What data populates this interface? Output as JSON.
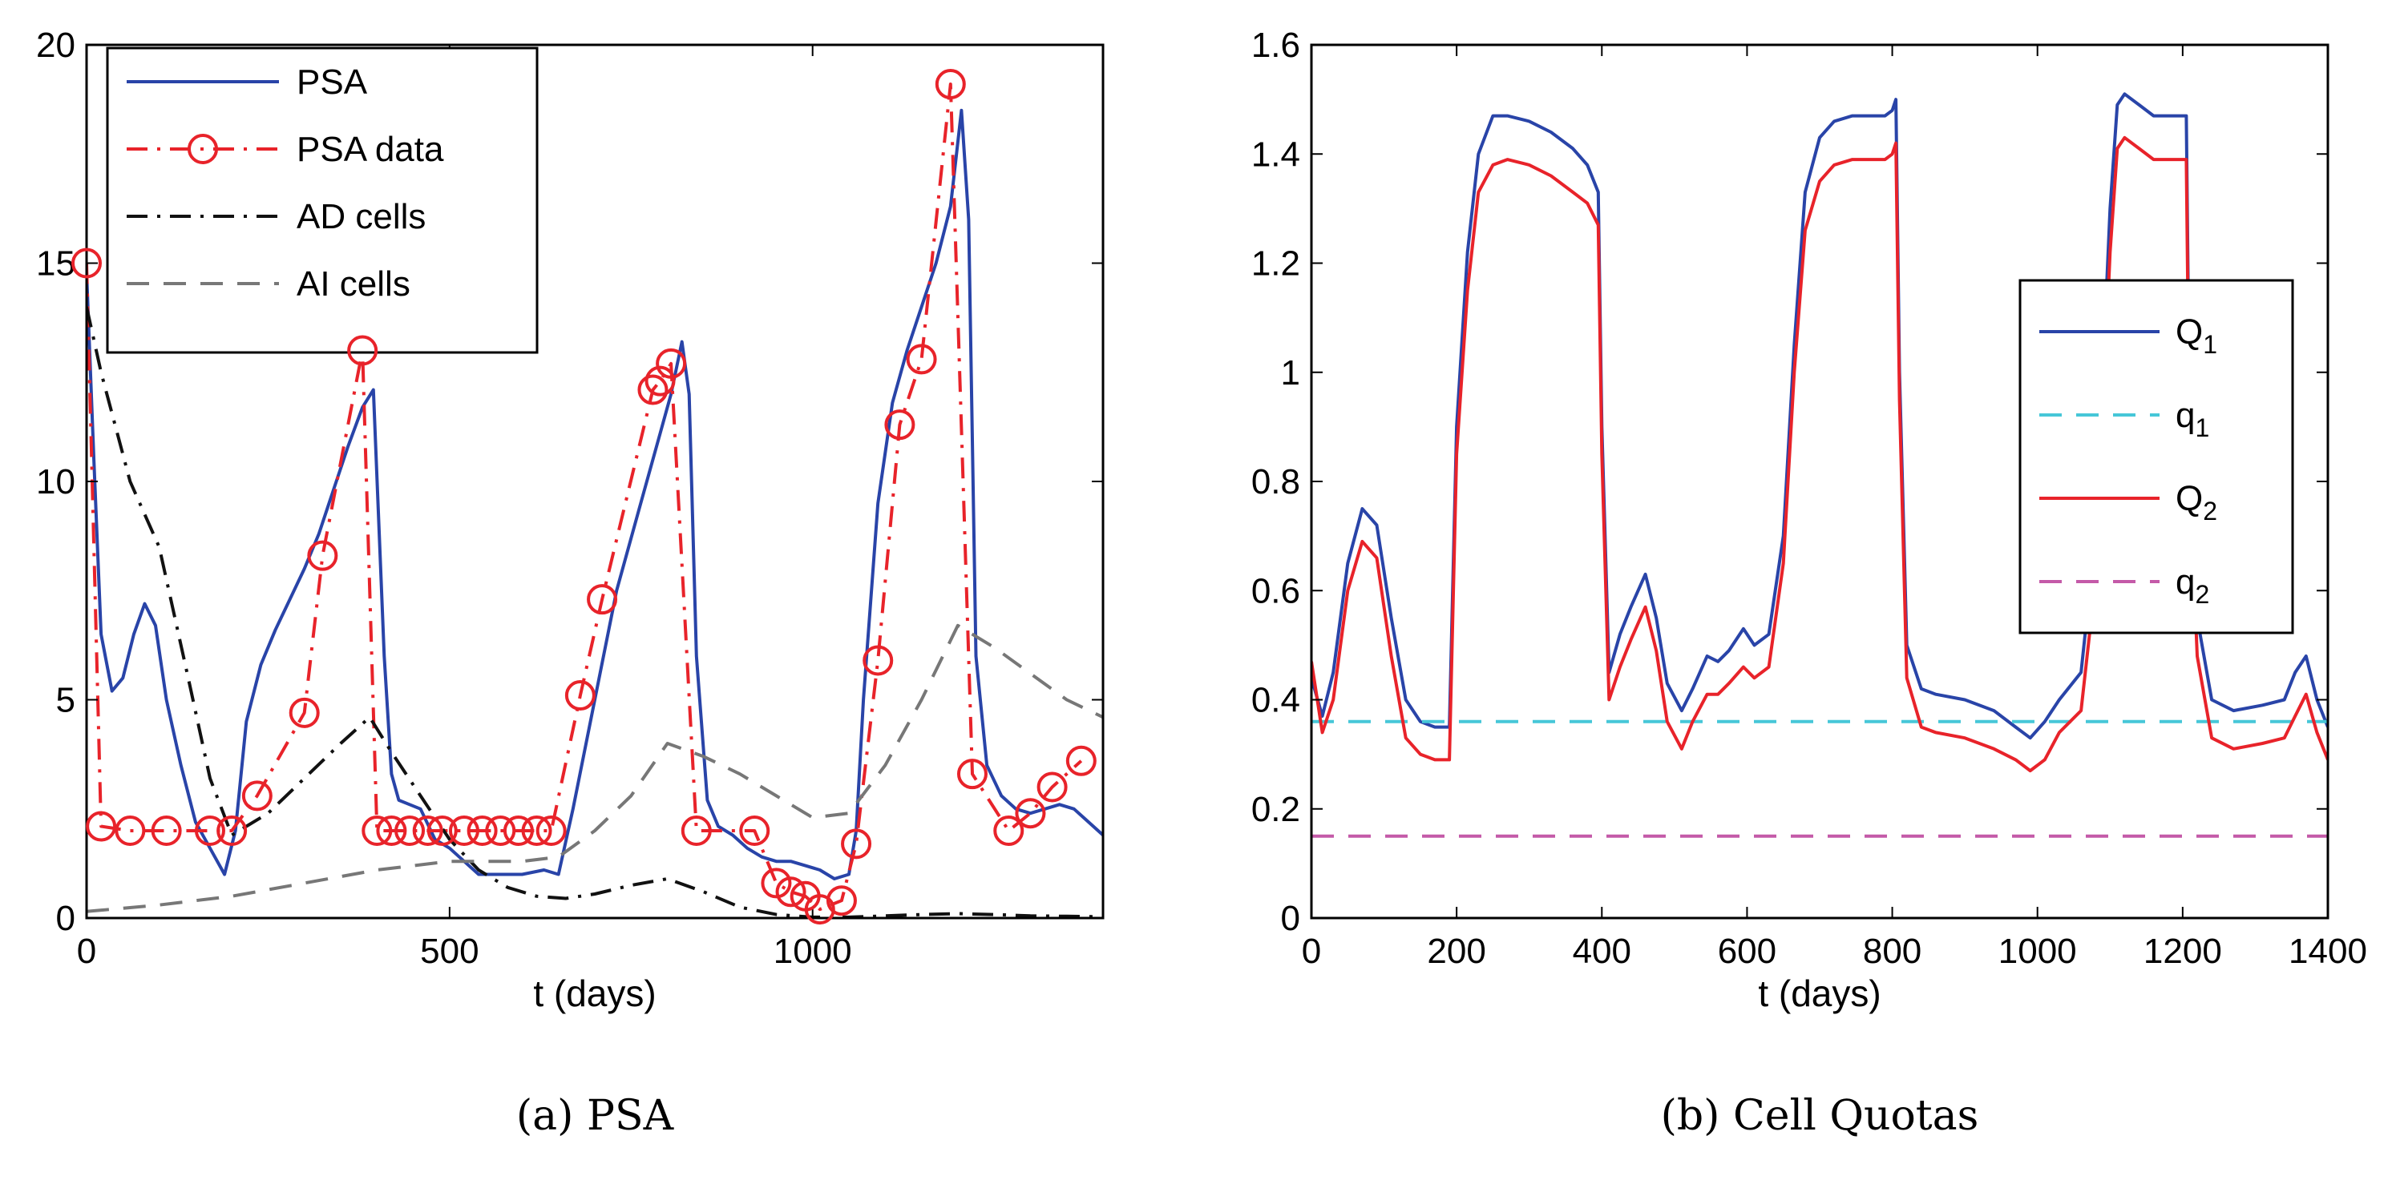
{
  "chart_data": [
    {
      "type": "line",
      "caption": "(a) PSA",
      "xlabel": "t (days)",
      "ylabel": "",
      "xlim": [
        0,
        1400
      ],
      "ylim": [
        0,
        20
      ],
      "xticks": [
        0,
        500,
        1000
      ],
      "yticks": [
        0,
        5,
        10,
        15,
        20
      ],
      "legend_position": "top-left",
      "series": [
        {
          "name": "PSA",
          "color": "#2944a8",
          "style": "solid",
          "x": [
            0,
            10,
            20,
            35,
            50,
            65,
            80,
            95,
            110,
            130,
            150,
            170,
            190,
            205,
            220,
            240,
            260,
            280,
            300,
            320,
            340,
            360,
            380,
            395,
            410,
            420,
            430,
            445,
            460,
            480,
            500,
            520,
            540,
            570,
            600,
            630,
            650,
            670,
            700,
            730,
            760,
            790,
            805,
            820,
            830,
            840,
            855,
            870,
            890,
            910,
            930,
            950,
            970,
            990,
            1010,
            1030,
            1050,
            1060,
            1070,
            1090,
            1110,
            1130,
            1150,
            1170,
            1190,
            1205,
            1215,
            1225,
            1240,
            1260,
            1280,
            1300,
            1320,
            1340,
            1360,
            1380,
            1400
          ],
          "y": [
            14.8,
            10.5,
            6.5,
            5.2,
            5.5,
            6.5,
            7.2,
            6.7,
            5.0,
            3.5,
            2.2,
            1.6,
            1.0,
            2.0,
            4.5,
            5.8,
            6.6,
            7.3,
            8.0,
            8.8,
            9.8,
            10.8,
            11.7,
            12.1,
            6.0,
            3.3,
            2.7,
            2.6,
            2.5,
            1.8,
            1.6,
            1.3,
            1.0,
            1.0,
            1.0,
            1.1,
            1.0,
            2.5,
            5.0,
            7.5,
            9.3,
            11.1,
            12.0,
            13.2,
            12.0,
            6.0,
            2.7,
            2.1,
            1.9,
            1.6,
            1.4,
            1.3,
            1.3,
            1.2,
            1.1,
            0.9,
            1.0,
            2.0,
            5.0,
            9.5,
            11.8,
            13.0,
            14.0,
            15.0,
            16.3,
            18.5,
            16.0,
            6.0,
            3.5,
            2.8,
            2.5,
            2.4,
            2.5,
            2.6,
            2.5,
            2.2,
            1.9
          ]
        },
        {
          "name": "PSA data",
          "color": "#e8232a",
          "style": "dashdot-markers",
          "x": [
            0,
            20,
            60,
            110,
            170,
            200,
            235,
            300,
            325,
            380,
            400,
            420,
            445,
            470,
            490,
            520,
            545,
            570,
            595,
            620,
            640,
            680,
            710,
            780,
            790,
            805,
            840,
            920,
            950,
            970,
            990,
            1010,
            1040,
            1060,
            1090,
            1120,
            1150,
            1190,
            1220,
            1270,
            1300,
            1330,
            1370
          ],
          "y": [
            15.0,
            2.1,
            2.0,
            2.0,
            2.0,
            2.0,
            2.8,
            4.7,
            8.3,
            13.0,
            2.0,
            2.0,
            2.0,
            2.0,
            2.0,
            2.0,
            2.0,
            2.0,
            2.0,
            2.0,
            2.0,
            5.1,
            7.3,
            12.1,
            12.3,
            12.7,
            2.0,
            2.0,
            0.8,
            0.6,
            0.5,
            0.2,
            0.4,
            1.7,
            5.9,
            11.3,
            12.8,
            19.1,
            3.3,
            2.0,
            2.4,
            3.0,
            3.6
          ]
        },
        {
          "name": "AD cells",
          "color": "#111111",
          "style": "dashdot",
          "x": [
            0,
            20,
            60,
            100,
            140,
            170,
            200,
            250,
            300,
            350,
            390,
            420,
            460,
            500,
            540,
            580,
            620,
            660,
            700,
            750,
            800,
            850,
            900,
            950,
            1000,
            1050,
            1100,
            1150,
            1200,
            1250,
            1300,
            1350,
            1400
          ],
          "y": [
            14.0,
            12.5,
            10.0,
            8.5,
            5.5,
            3.2,
            1.9,
            2.4,
            3.2,
            4.0,
            4.6,
            3.8,
            2.8,
            1.8,
            1.1,
            0.7,
            0.5,
            0.45,
            0.55,
            0.75,
            0.9,
            0.6,
            0.25,
            0.08,
            0.02,
            0.02,
            0.05,
            0.08,
            0.1,
            0.08,
            0.05,
            0.04,
            0.03
          ]
        },
        {
          "name": "AI cells",
          "color": "#777777",
          "style": "dashed",
          "x": [
            0,
            100,
            200,
            300,
            400,
            500,
            600,
            650,
            700,
            750,
            800,
            850,
            900,
            950,
            1000,
            1050,
            1100,
            1150,
            1200,
            1250,
            1300,
            1350,
            1400
          ],
          "y": [
            0.15,
            0.3,
            0.5,
            0.8,
            1.1,
            1.3,
            1.3,
            1.4,
            2.0,
            2.8,
            4.0,
            3.7,
            3.3,
            2.8,
            2.3,
            2.4,
            3.5,
            5.0,
            6.7,
            6.2,
            5.6,
            5.0,
            4.6
          ]
        }
      ]
    },
    {
      "type": "line",
      "caption": "(b) Cell Quotas",
      "xlabel": "t (days)",
      "ylabel": "",
      "xlim": [
        0,
        1400
      ],
      "ylim": [
        0,
        1.6
      ],
      "xticks": [
        0,
        200,
        400,
        600,
        800,
        1000,
        1200,
        1400
      ],
      "yticks": [
        0,
        0.2,
        0.4,
        0.6,
        0.8,
        1,
        1.2,
        1.4,
        1.6
      ],
      "legend_position": "right",
      "series": [
        {
          "name": "Q",
          "subscript": "1",
          "color": "#2944a8",
          "style": "solid",
          "x": [
            0,
            15,
            30,
            50,
            70,
            90,
            110,
            130,
            150,
            170,
            190,
            200,
            215,
            230,
            250,
            270,
            300,
            330,
            360,
            380,
            395,
            400,
            410,
            425,
            440,
            460,
            475,
            490,
            510,
            525,
            545,
            560,
            575,
            595,
            610,
            630,
            650,
            665,
            680,
            700,
            720,
            745,
            770,
            790,
            800,
            805,
            810,
            820,
            840,
            860,
            900,
            940,
            970,
            990,
            1010,
            1030,
            1060,
            1080,
            1100,
            1110,
            1120,
            1140,
            1160,
            1200,
            1205,
            1210,
            1220,
            1240,
            1270,
            1310,
            1340,
            1355,
            1370,
            1385,
            1400
          ],
          "y": [
            0.44,
            0.37,
            0.45,
            0.65,
            0.75,
            0.72,
            0.55,
            0.4,
            0.36,
            0.35,
            0.35,
            0.9,
            1.22,
            1.4,
            1.47,
            1.47,
            1.46,
            1.44,
            1.41,
            1.38,
            1.33,
            0.9,
            0.45,
            0.52,
            0.57,
            0.63,
            0.55,
            0.43,
            0.38,
            0.42,
            0.48,
            0.47,
            0.49,
            0.53,
            0.5,
            0.52,
            0.7,
            1.05,
            1.33,
            1.43,
            1.46,
            1.47,
            1.47,
            1.47,
            1.48,
            1.5,
            1.0,
            0.5,
            0.42,
            0.41,
            0.4,
            0.38,
            0.35,
            0.33,
            0.36,
            0.4,
            0.45,
            0.7,
            1.3,
            1.49,
            1.51,
            1.49,
            1.47,
            1.47,
            1.47,
            0.85,
            0.55,
            0.4,
            0.38,
            0.39,
            0.4,
            0.45,
            0.48,
            0.4,
            0.35
          ]
        },
        {
          "name": "q",
          "subscript": "1",
          "color": "#46c7d8",
          "style": "dashed",
          "x": [
            0,
            1400
          ],
          "y": [
            0.36,
            0.36
          ]
        },
        {
          "name": "Q",
          "subscript": "2",
          "color": "#e8232a",
          "style": "solid",
          "x": [
            0,
            15,
            30,
            50,
            70,
            90,
            110,
            130,
            150,
            170,
            190,
            200,
            215,
            230,
            250,
            270,
            300,
            330,
            360,
            380,
            395,
            400,
            410,
            425,
            440,
            460,
            475,
            490,
            510,
            525,
            545,
            560,
            575,
            595,
            610,
            630,
            650,
            665,
            680,
            700,
            720,
            745,
            770,
            790,
            800,
            805,
            810,
            820,
            840,
            860,
            900,
            940,
            970,
            990,
            1010,
            1030,
            1060,
            1080,
            1100,
            1110,
            1120,
            1140,
            1160,
            1200,
            1205,
            1210,
            1220,
            1240,
            1270,
            1310,
            1340,
            1355,
            1370,
            1385,
            1400
          ],
          "y": [
            0.47,
            0.34,
            0.4,
            0.6,
            0.69,
            0.66,
            0.48,
            0.33,
            0.3,
            0.29,
            0.29,
            0.85,
            1.15,
            1.33,
            1.38,
            1.39,
            1.38,
            1.36,
            1.33,
            1.31,
            1.27,
            0.85,
            0.4,
            0.46,
            0.51,
            0.57,
            0.49,
            0.36,
            0.31,
            0.36,
            0.41,
            0.41,
            0.43,
            0.46,
            0.44,
            0.46,
            0.65,
            1.0,
            1.26,
            1.35,
            1.38,
            1.39,
            1.39,
            1.39,
            1.4,
            1.42,
            0.95,
            0.44,
            0.35,
            0.34,
            0.33,
            0.31,
            0.29,
            0.27,
            0.29,
            0.34,
            0.38,
            0.62,
            1.22,
            1.41,
            1.43,
            1.41,
            1.39,
            1.39,
            1.39,
            0.8,
            0.48,
            0.33,
            0.31,
            0.32,
            0.33,
            0.37,
            0.41,
            0.34,
            0.29
          ]
        },
        {
          "name": "q",
          "subscript": "2",
          "color": "#c45aa8",
          "style": "dashed",
          "x": [
            0,
            1400
          ],
          "y": [
            0.15,
            0.15
          ]
        }
      ]
    }
  ]
}
